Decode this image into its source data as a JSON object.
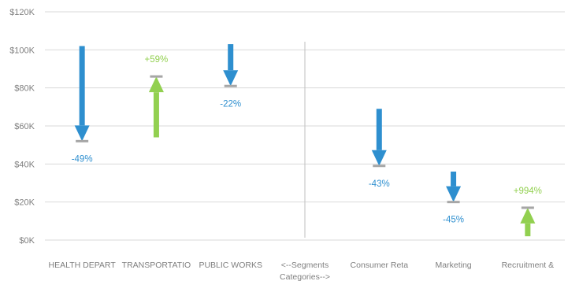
{
  "chart_data": {
    "type": "bar",
    "subtype": "arrow-waterfall",
    "ylim": [
      0,
      120000
    ],
    "yticks": [
      0,
      20000,
      40000,
      60000,
      80000,
      100000,
      120000
    ],
    "ytick_labels": [
      "$0K",
      "$20K",
      "$40K",
      "$60K",
      "$80K",
      "$100K",
      "$120K"
    ],
    "grid": true,
    "categories": [
      {
        "label": "HEALTH DEPART",
        "label2": "",
        "start": 102000,
        "end": 52000,
        "pct": "-49%",
        "direction": "down"
      },
      {
        "label": "TRANSPORTATIO",
        "label2": "",
        "start": 54000,
        "end": 86000,
        "pct": "+59%",
        "direction": "up"
      },
      {
        "label": "PUBLIC WORKS",
        "label2": "",
        "start": 103000,
        "end": 81000,
        "pct": "-22%",
        "direction": "down"
      },
      {
        "label": "<--Segments",
        "label2": "Categories-->",
        "start": null,
        "end": null,
        "pct": "",
        "direction": "separator"
      },
      {
        "label": "Consumer Reta",
        "label2": "",
        "start": 69000,
        "end": 39000,
        "pct": "-43%",
        "direction": "down"
      },
      {
        "label": "Marketing",
        "label2": "",
        "start": 36000,
        "end": 20000,
        "pct": "-45%",
        "direction": "down"
      },
      {
        "label": "Recruitment &",
        "label2": "",
        "start": 2000,
        "end": 17000,
        "pct": "+994%",
        "direction": "up"
      }
    ],
    "colors": {
      "down": "#2e8fcf",
      "up": "#92d050",
      "down_label": "#2e8fcf",
      "up_label": "#92d050",
      "end_marker": "#a6a6a6",
      "grid": "#d9d9d9"
    }
  }
}
